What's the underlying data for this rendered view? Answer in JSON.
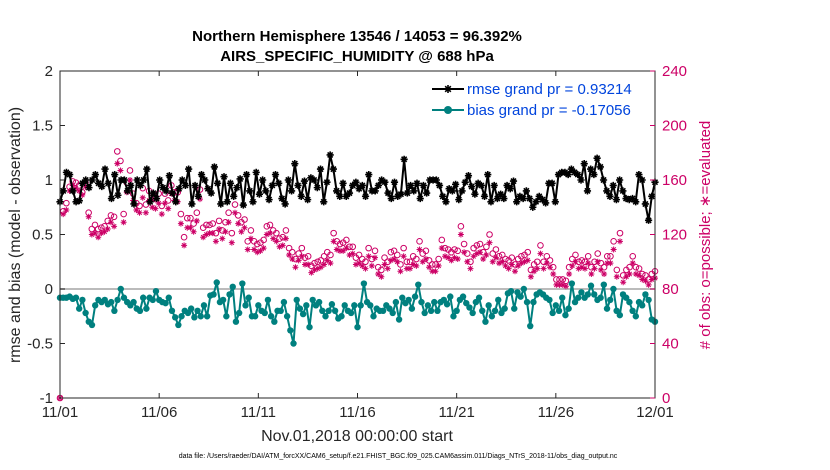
{
  "chart_data": {
    "type": "line",
    "title_line1": "Northern Hemisphere 13546 / 14053 = 96.392%",
    "title_line2": "AIRS_SPECIFIC_HUMIDITY @ 688 hPa",
    "xlabel": "Nov.01,2018 00:00:00 start",
    "ylabel_left": "rmse and bias (model - observation)",
    "ylabel_right": "# of obs: o=possible; ∗=evaluated",
    "footnote": "data file: /Users/raeder/DAI/ATM_forcXX/CAM6_setup/f.e21.FHIST_BGC.f09_025.CAM6assim.011/Diags_NTrS_2018-11/obs_diag_output.nc",
    "x_ticks": [
      "11/01",
      "11/06",
      "11/11",
      "11/16",
      "11/21",
      "11/26",
      "12/01"
    ],
    "x_tick_days": [
      0,
      5,
      10,
      15,
      20,
      25,
      30
    ],
    "x_range_days": [
      0,
      30
    ],
    "y_left_range": [
      -1,
      2
    ],
    "y_left_ticks": [
      "-1",
      "-0.5",
      "0",
      "0.5",
      "1",
      "1.5",
      "2"
    ],
    "y_left_tick_values": [
      -1,
      -0.5,
      0,
      0.5,
      1,
      1.5,
      2
    ],
    "y_right_range": [
      0,
      240
    ],
    "y_right_ticks": [
      "0",
      "40",
      "80",
      "120",
      "160",
      "200",
      "240"
    ],
    "y_right_tick_values": [
      0,
      40,
      80,
      120,
      160,
      200,
      240
    ],
    "legend": [
      {
        "label": "rmse grand pr = 0.93214",
        "color": "#000000",
        "marker": "star"
      },
      {
        "label": "bias grand pr = -0.17056",
        "color": "#00807f",
        "marker": "circle"
      }
    ],
    "colors": {
      "rmse": "#000000",
      "bias": "#00807f",
      "obs": "#cc0066",
      "zero_line": "#bbbbbb"
    },
    "series": [
      {
        "name": "rmse",
        "values": [
          0.8,
          0.9,
          1.07,
          1.05,
          0.9,
          0.8,
          0.81,
          0.97,
          1.0,
          0.93,
          1.0,
          1.05,
          0.97,
          0.94,
          1.1,
          0.97,
          0.83,
          1.05,
          0.86,
          1.0,
          1.0,
          0.9,
          0.95,
          0.78,
          1.0,
          0.95,
          1.0,
          1.1,
          0.8,
          0.88,
          0.83,
          1.0,
          0.93,
          0.9,
          1.04,
          0.88,
          0.8,
          0.92,
          1.0,
          0.95,
          1.1,
          0.78,
          0.95,
          0.85,
          1.05,
          1.0,
          0.92,
          0.88,
          1.12,
          0.97,
          0.78,
          1.03,
          0.8,
          0.97,
          0.85,
          0.93,
          1.01,
          0.77,
          1.05,
          0.9,
          0.8,
          1.07,
          0.87,
          1.0,
          0.9,
          0.82,
          0.95,
          1.05,
          0.97,
          0.83,
          0.78,
          1.0,
          0.9,
          1.15,
          0.95,
          0.85,
          0.99,
          0.82,
          1.02,
          1.0,
          0.93,
          1.1,
          0.8,
          0.98,
          1.23,
          1.1,
          0.9,
          0.85,
          0.97,
          0.85,
          0.88,
          0.95,
          0.98,
          0.92,
          0.95,
          0.85,
          1.05,
          0.9,
          0.9,
          0.95,
          1.0,
          0.98,
          0.88,
          0.83,
          0.98,
          0.85,
          0.87,
          1.19,
          0.88,
          0.95,
          0.9,
          0.97,
          0.83,
          0.95,
          0.88,
          1.0,
          1.0,
          1.0,
          0.95,
          0.85,
          0.8,
          0.92,
          0.9,
          0.96,
          0.82,
          0.9,
          0.98,
          1.04,
          0.94,
          0.87,
          0.97,
          0.95,
          0.85,
          1.05,
          0.8,
          0.95,
          0.83,
          0.87,
          0.83,
          0.95,
          0.92,
          0.99,
          0.8,
          0.85,
          0.83,
          0.9,
          0.83,
          0.75,
          0.8,
          0.85,
          0.82,
          0.79,
          0.97,
          0.97,
          0.8,
          1.05,
          1.07,
          1.07,
          1.05,
          1.1,
          1.07,
          1.05,
          1.0,
          1.15,
          0.9,
          1.1,
          1.05,
          1.2,
          1.12,
          1.0,
          0.9,
          0.85,
          0.95,
          0.82,
          1.0,
          0.9,
          0.83,
          0.82,
          0.83,
          0.8,
          1.05,
          1.0,
          0.78,
          0.63,
          0.85,
          0.98
        ]
      },
      {
        "name": "bias",
        "values": [
          -0.08,
          -0.08,
          -0.08,
          -0.07,
          -0.09,
          -0.08,
          -0.18,
          -0.1,
          -0.22,
          -0.3,
          -0.33,
          -0.15,
          -0.1,
          -0.12,
          -0.1,
          -0.14,
          -0.12,
          -0.2,
          -0.1,
          0.0,
          -0.08,
          -0.12,
          -0.15,
          -0.12,
          -0.18,
          -0.2,
          -0.08,
          -0.18,
          -0.08,
          -0.1,
          -0.02,
          -0.1,
          -0.12,
          -0.13,
          -0.08,
          -0.2,
          -0.26,
          -0.33,
          -0.25,
          -0.2,
          -0.22,
          -0.18,
          -0.26,
          -0.2,
          -0.25,
          -0.15,
          -0.25,
          -0.06,
          -0.05,
          0.06,
          -0.12,
          -0.1,
          -0.25,
          -0.05,
          0.02,
          -0.3,
          -0.22,
          0.05,
          -0.15,
          -0.08,
          -0.25,
          -0.25,
          -0.15,
          -0.2,
          -0.22,
          -0.1,
          -0.25,
          -0.3,
          -0.2,
          -0.2,
          -0.12,
          -0.25,
          -0.38,
          -0.5,
          -0.1,
          -0.18,
          -0.23,
          -0.15,
          -0.35,
          -0.1,
          -0.15,
          -0.12,
          -0.2,
          -0.25,
          -0.2,
          -0.14,
          -0.2,
          -0.27,
          -0.25,
          -0.15,
          -0.2,
          -0.22,
          -0.15,
          -0.35,
          -0.15,
          0.05,
          -0.12,
          -0.15,
          -0.25,
          -0.18,
          -0.2,
          -0.2,
          -0.15,
          -0.18,
          -0.22,
          -0.12,
          -0.28,
          -0.08,
          -0.13,
          -0.1,
          -0.18,
          -0.07,
          0.04,
          -0.12,
          -0.22,
          -0.15,
          -0.2,
          -0.12,
          -0.2,
          -0.12,
          -0.1,
          -0.14,
          -0.07,
          -0.25,
          -0.2,
          -0.1,
          -0.07,
          -0.13,
          -0.17,
          -0.22,
          -0.12,
          -0.08,
          -0.2,
          -0.3,
          -0.15,
          -0.25,
          -0.2,
          -0.1,
          -0.22,
          -0.18,
          -0.04,
          -0.02,
          -0.18,
          -0.03,
          -0.07,
          0.0,
          -0.12,
          -0.34,
          -0.12,
          -0.05,
          -0.03,
          -0.05,
          -0.08,
          -0.1,
          -0.22,
          -0.15,
          -0.2,
          -0.08,
          -0.24,
          -0.18,
          0.05,
          -0.12,
          -0.08,
          -0.03,
          -0.08,
          -0.05,
          0.03,
          -0.05,
          -0.1,
          -0.08,
          0.04,
          -0.18,
          -0.1,
          0.0,
          -0.2,
          -0.24,
          -0.05,
          -0.08,
          -0.12,
          -0.2,
          -0.25,
          -0.12,
          -0.15,
          -0.05,
          -0.1,
          -0.28,
          -0.3
        ]
      },
      {
        "name": "obs_possible",
        "values": [
          0,
          137,
          143,
          155,
          159,
          158,
          156,
          151,
          158,
          136,
          124,
          127,
          124,
          125,
          126,
          130,
          134,
          133,
          181,
          174,
          135,
          158,
          167,
          150,
          143,
          141,
          154,
          142,
          152,
          147,
          146,
          150,
          141,
          150,
          145,
          156,
          151,
          151,
          135,
          118,
          132,
          132,
          128,
          136,
          153,
          125,
          127,
          127,
          128,
          121,
          130,
          123,
          129,
          136,
          121,
          142,
          134,
          129,
          131,
          115,
          123,
          115,
          113,
          114,
          116,
          126,
          127,
          123,
          121,
          117,
          118,
          123,
          110,
          107,
          102,
          106,
          110,
          103,
          104,
          97,
          99,
          100,
          101,
          104,
          107,
          105,
          121,
          115,
          113,
          114,
          116,
          111,
          111,
          103,
          105,
          102,
          100,
          110,
          102,
          108,
          96,
          94,
          103,
          100,
          107,
          108,
          105,
          98,
          110,
          100,
          100,
          104,
          102,
          115,
          106,
          108,
          101,
          98,
          98,
          102,
          116,
          110,
          109,
          107,
          109,
          108,
          126,
          113,
          106,
          100,
          110,
          112,
          113,
          107,
          111,
          120,
          106,
          109,
          104,
          105,
          102,
          101,
          103,
          98,
          102,
          104,
          105,
          107,
          94,
          98,
          100,
          112,
          100,
          104,
          101,
          96,
          87,
          87,
          87,
          86,
          96,
          102,
          105,
          100,
          101,
          100,
          104,
          96,
          100,
          106,
          99,
          96,
          104,
          104,
          115,
          94,
          121,
          90,
          94,
          96,
          104,
          96,
          95,
          91,
          90,
          87,
          91,
          93
        ]
      },
      {
        "name": "obs_evaluated",
        "values": [
          0,
          135,
          138,
          152,
          156,
          154,
          152,
          149,
          155,
          133,
          120,
          121,
          118,
          121,
          122,
          124,
          129,
          126,
          172,
          167,
          129,
          151,
          160,
          145,
          138,
          136,
          147,
          136,
          145,
          140,
          139,
          143,
          135,
          143,
          139,
          150,
          145,
          144,
          128,
          112,
          125,
          125,
          122,
          130,
          146,
          118,
          120,
          121,
          121,
          115,
          124,
          117,
          122,
          129,
          114,
          136,
          128,
          122,
          125,
          109,
          117,
          109,
          107,
          108,
          110,
          120,
          121,
          117,
          115,
          111,
          112,
          117,
          105,
          102,
          96,
          101,
          104,
          98,
          98,
          92,
          94,
          95,
          96,
          98,
          101,
          99,
          115,
          109,
          108,
          108,
          110,
          105,
          106,
          98,
          99,
          97,
          95,
          104,
          97,
          103,
          91,
          89,
          98,
          95,
          101,
          102,
          100,
          93,
          104,
          95,
          95,
          98,
          97,
          109,
          100,
          102,
          96,
          93,
          93,
          97,
          110,
          104,
          103,
          101,
          103,
          102,
          120,
          107,
          100,
          95,
          104,
          106,
          107,
          102,
          105,
          114,
          100,
          103,
          99,
          100,
          97,
          95,
          98,
          93,
          97,
          99,
          100,
          101,
          89,
          93,
          95,
          106,
          95,
          99,
          96,
          91,
          83,
          83,
          83,
          82,
          91,
          97,
          100,
          95,
          96,
          95,
          99,
          91,
          95,
          100,
          94,
          91,
          99,
          99,
          109,
          89,
          115,
          85,
          89,
          91,
          99,
          91,
          90,
          87,
          86,
          83,
          87,
          88
        ]
      }
    ]
  }
}
